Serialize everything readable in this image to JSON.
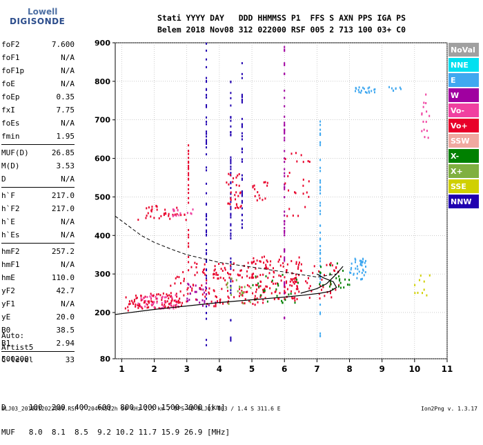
{
  "logo": {
    "company": "Lowell",
    "product": "DIGISONDE"
  },
  "header": {
    "row1": "Stati YYYY DAY   DDD HHMMSS P1  FFS S AXN PPS IGA PS",
    "row2": "Belem 2018 Nov08 312 022000 RSF 005 2 713 100 03+ C0"
  },
  "params": [
    {
      "name": "foF2",
      "value": "7.600"
    },
    {
      "name": "foF1",
      "value": "N/A"
    },
    {
      "name": "foF1p",
      "value": "N/A"
    },
    {
      "name": "foE",
      "value": "N/A"
    },
    {
      "name": "foEp",
      "value": "0.35"
    },
    {
      "name": "fxI",
      "value": "7.75"
    },
    {
      "name": "foEs",
      "value": "N/A"
    },
    {
      "name": "fmin",
      "value": "1.95"
    },
    {
      "name": "MUF(D)",
      "value": "26.85",
      "sep": true
    },
    {
      "name": "M(D)",
      "value": "3.53"
    },
    {
      "name": "D",
      "value": "N/A"
    },
    {
      "name": "h`F",
      "value": "217.0",
      "sep": true
    },
    {
      "name": "h`F2",
      "value": "217.0"
    },
    {
      "name": "h`E",
      "value": "N/A"
    },
    {
      "name": "h`Es",
      "value": "N/A"
    },
    {
      "name": "hmF2",
      "value": "257.2",
      "sep": true
    },
    {
      "name": "hmF1",
      "value": "N/A"
    },
    {
      "name": "hmE",
      "value": "110.0"
    },
    {
      "name": "yF2",
      "value": "42.7"
    },
    {
      "name": "yF1",
      "value": "N/A"
    },
    {
      "name": "yE",
      "value": "20.0"
    },
    {
      "name": "B0",
      "value": "38.5"
    },
    {
      "name": "B1",
      "value": "2.94"
    },
    {
      "name": "C-level",
      "value": "33",
      "sep": true
    }
  ],
  "auto": {
    "line1": "Auto:",
    "line2": "Artist5",
    "line3": "500200"
  },
  "dmuf": {
    "d_row": "D     100  200  400  600  800 1000 1500 3000 [km]",
    "muf_row": "MUF   8.0  8.1  8.5  9.2 10.2 11.7 15.9 26.9 [MHz]"
  },
  "footer": "BLJ03_2018312022000.RSF / 204fx512h 50 kHz 2.5 km / DPS-4D BLJ03 103 / 1.4 S 311.6 E",
  "version": "Ion2Png v. 1.3.17",
  "legend": [
    {
      "label": "NoVal",
      "color": "#a0a0a0"
    },
    {
      "label": "NNE",
      "color": "#00e0f0"
    },
    {
      "label": "E",
      "color": "#40a8f0"
    },
    {
      "label": "W",
      "color": "#a000a0"
    },
    {
      "label": "Vo-",
      "color": "#f040a0"
    },
    {
      "label": "Vo+",
      "color": "#e8002a"
    },
    {
      "label": "SSW",
      "color": "#f0a8a0"
    },
    {
      "label": "X-",
      "color": "#008000"
    },
    {
      "label": "X+",
      "color": "#80b040"
    },
    {
      "label": "SSE",
      "color": "#d0d000"
    },
    {
      "label": "NNW",
      "color": "#2000b0"
    }
  ],
  "chart_data": {
    "type": "scatter",
    "title": "",
    "xlabel": "",
    "ylabel": "",
    "xlim": [
      0.8,
      11
    ],
    "ylim": [
      80,
      900
    ],
    "x_ticks": [
      1,
      2,
      3,
      4,
      5,
      6,
      7,
      8,
      9,
      10,
      11
    ],
    "y_ticks": [
      80,
      200,
      300,
      400,
      500,
      600,
      700,
      800,
      900
    ],
    "grid": true,
    "profile_curve": {
      "style": "solid",
      "x": [
        0.8,
        2,
        3,
        4,
        5,
        6,
        6.6,
        7.1,
        7.4,
        7.6,
        7.5,
        7.2,
        7
      ],
      "y": [
        195,
        208,
        217,
        226,
        233,
        240,
        245,
        250,
        255,
        265,
        280,
        290,
        300
      ]
    },
    "upper_curve": {
      "style": "dashed",
      "x": [
        0.8,
        1.2,
        1.6,
        2,
        2.5,
        3,
        3.5,
        4,
        5,
        6,
        7,
        7.6
      ],
      "y": [
        450,
        425,
        400,
        382,
        365,
        350,
        340,
        330,
        318,
        305,
        292,
        300
      ]
    },
    "trace_line": {
      "x": [
        6.5,
        7,
        7.3,
        7.6,
        7.8
      ],
      "y": [
        250,
        262,
        275,
        300,
        320
      ]
    },
    "echo_clusters": [
      {
        "x_range": [
          1.1,
          1.4
        ],
        "y_range": [
          205,
          240
        ],
        "color": "#e8002a",
        "count": 12
      },
      {
        "x_range": [
          1.4,
          2.8
        ],
        "y_range": [
          210,
          250
        ],
        "color": "#e8002a",
        "count": 80
      },
      {
        "x_range": [
          1.5,
          2.8
        ],
        "y_range": [
          210,
          245
        ],
        "color": "#f040a0",
        "count": 40
      },
      {
        "x_range": [
          2.5,
          4.0
        ],
        "y_range": [
          215,
          330
        ],
        "color": "#e8002a",
        "count": 70
      },
      {
        "x_range": [
          3.0,
          4.0
        ],
        "y_range": [
          215,
          280
        ],
        "color": "#a000a0",
        "count": 25
      },
      {
        "x_range": [
          4.0,
          5.5
        ],
        "y_range": [
          220,
          340
        ],
        "color": "#e8002a",
        "count": 90
      },
      {
        "x_range": [
          4.2,
          5.0
        ],
        "y_range": [
          220,
          290
        ],
        "color": "#80b040",
        "count": 20
      },
      {
        "x_range": [
          5.0,
          6.5
        ],
        "y_range": [
          225,
          350
        ],
        "color": "#e8002a",
        "count": 90
      },
      {
        "x_range": [
          5.0,
          6.5
        ],
        "y_range": [
          225,
          300
        ],
        "color": "#008000",
        "count": 25
      },
      {
        "x_range": [
          6.0,
          7.7
        ],
        "y_range": [
          235,
          330
        ],
        "color": "#e8002a",
        "count": 60
      },
      {
        "x_range": [
          7.0,
          8.0
        ],
        "y_range": [
          260,
          330
        ],
        "color": "#008000",
        "count": 25
      },
      {
        "x_range": [
          8.0,
          8.5
        ],
        "y_range": [
          285,
          345
        ],
        "color": "#40a8f0",
        "count": 40
      },
      {
        "x_range": [
          1.5,
          3.0
        ],
        "y_range": [
          440,
          480
        ],
        "color": "#e8002a",
        "count": 35
      },
      {
        "x_range": [
          2.5,
          3.2
        ],
        "y_range": [
          450,
          470
        ],
        "color": "#f040a0",
        "count": 15
      },
      {
        "x_range": [
          4.2,
          4.7
        ],
        "y_range": [
          470,
          560
        ],
        "color": "#e8002a",
        "count": 30
      },
      {
        "x_range": [
          5.0,
          5.5
        ],
        "y_range": [
          490,
          540
        ],
        "color": "#e8002a",
        "count": 15
      },
      {
        "x_range": [
          6.0,
          6.8
        ],
        "y_range": [
          450,
          620
        ],
        "color": "#e8002a",
        "count": 25
      },
      {
        "x_range": [
          8.1,
          8.8
        ],
        "y_range": [
          770,
          785
        ],
        "color": "#40a8f0",
        "count": 20
      },
      {
        "x_range": [
          9.2,
          9.6
        ],
        "y_range": [
          775,
          785
        ],
        "color": "#40a8f0",
        "count": 8
      },
      {
        "x_range": [
          10.2,
          10.5
        ],
        "y_range": [
          650,
          780
        ],
        "color": "#f040a0",
        "count": 15
      },
      {
        "x_range": [
          10.0,
          10.5
        ],
        "y_range": [
          230,
          300
        ],
        "color": "#d0d000",
        "count": 10
      }
    ],
    "vertical_traces": [
      {
        "x": 3.6,
        "y_range": [
          110,
          900
        ],
        "color": "#2000b0"
      },
      {
        "x": 4.35,
        "y_range": [
          120,
          800
        ],
        "color": "#2000b0"
      },
      {
        "x": 6.0,
        "y_range": [
          180,
          900
        ],
        "color": "#a000a0"
      },
      {
        "x": 7.1,
        "y_range": [
          120,
          700
        ],
        "color": "#40a8f0"
      },
      {
        "x": 3.05,
        "y_range": [
          300,
          650
        ],
        "color": "#e8002a"
      },
      {
        "x": 4.7,
        "y_range": [
          400,
          850
        ],
        "color": "#2000b0"
      }
    ]
  }
}
